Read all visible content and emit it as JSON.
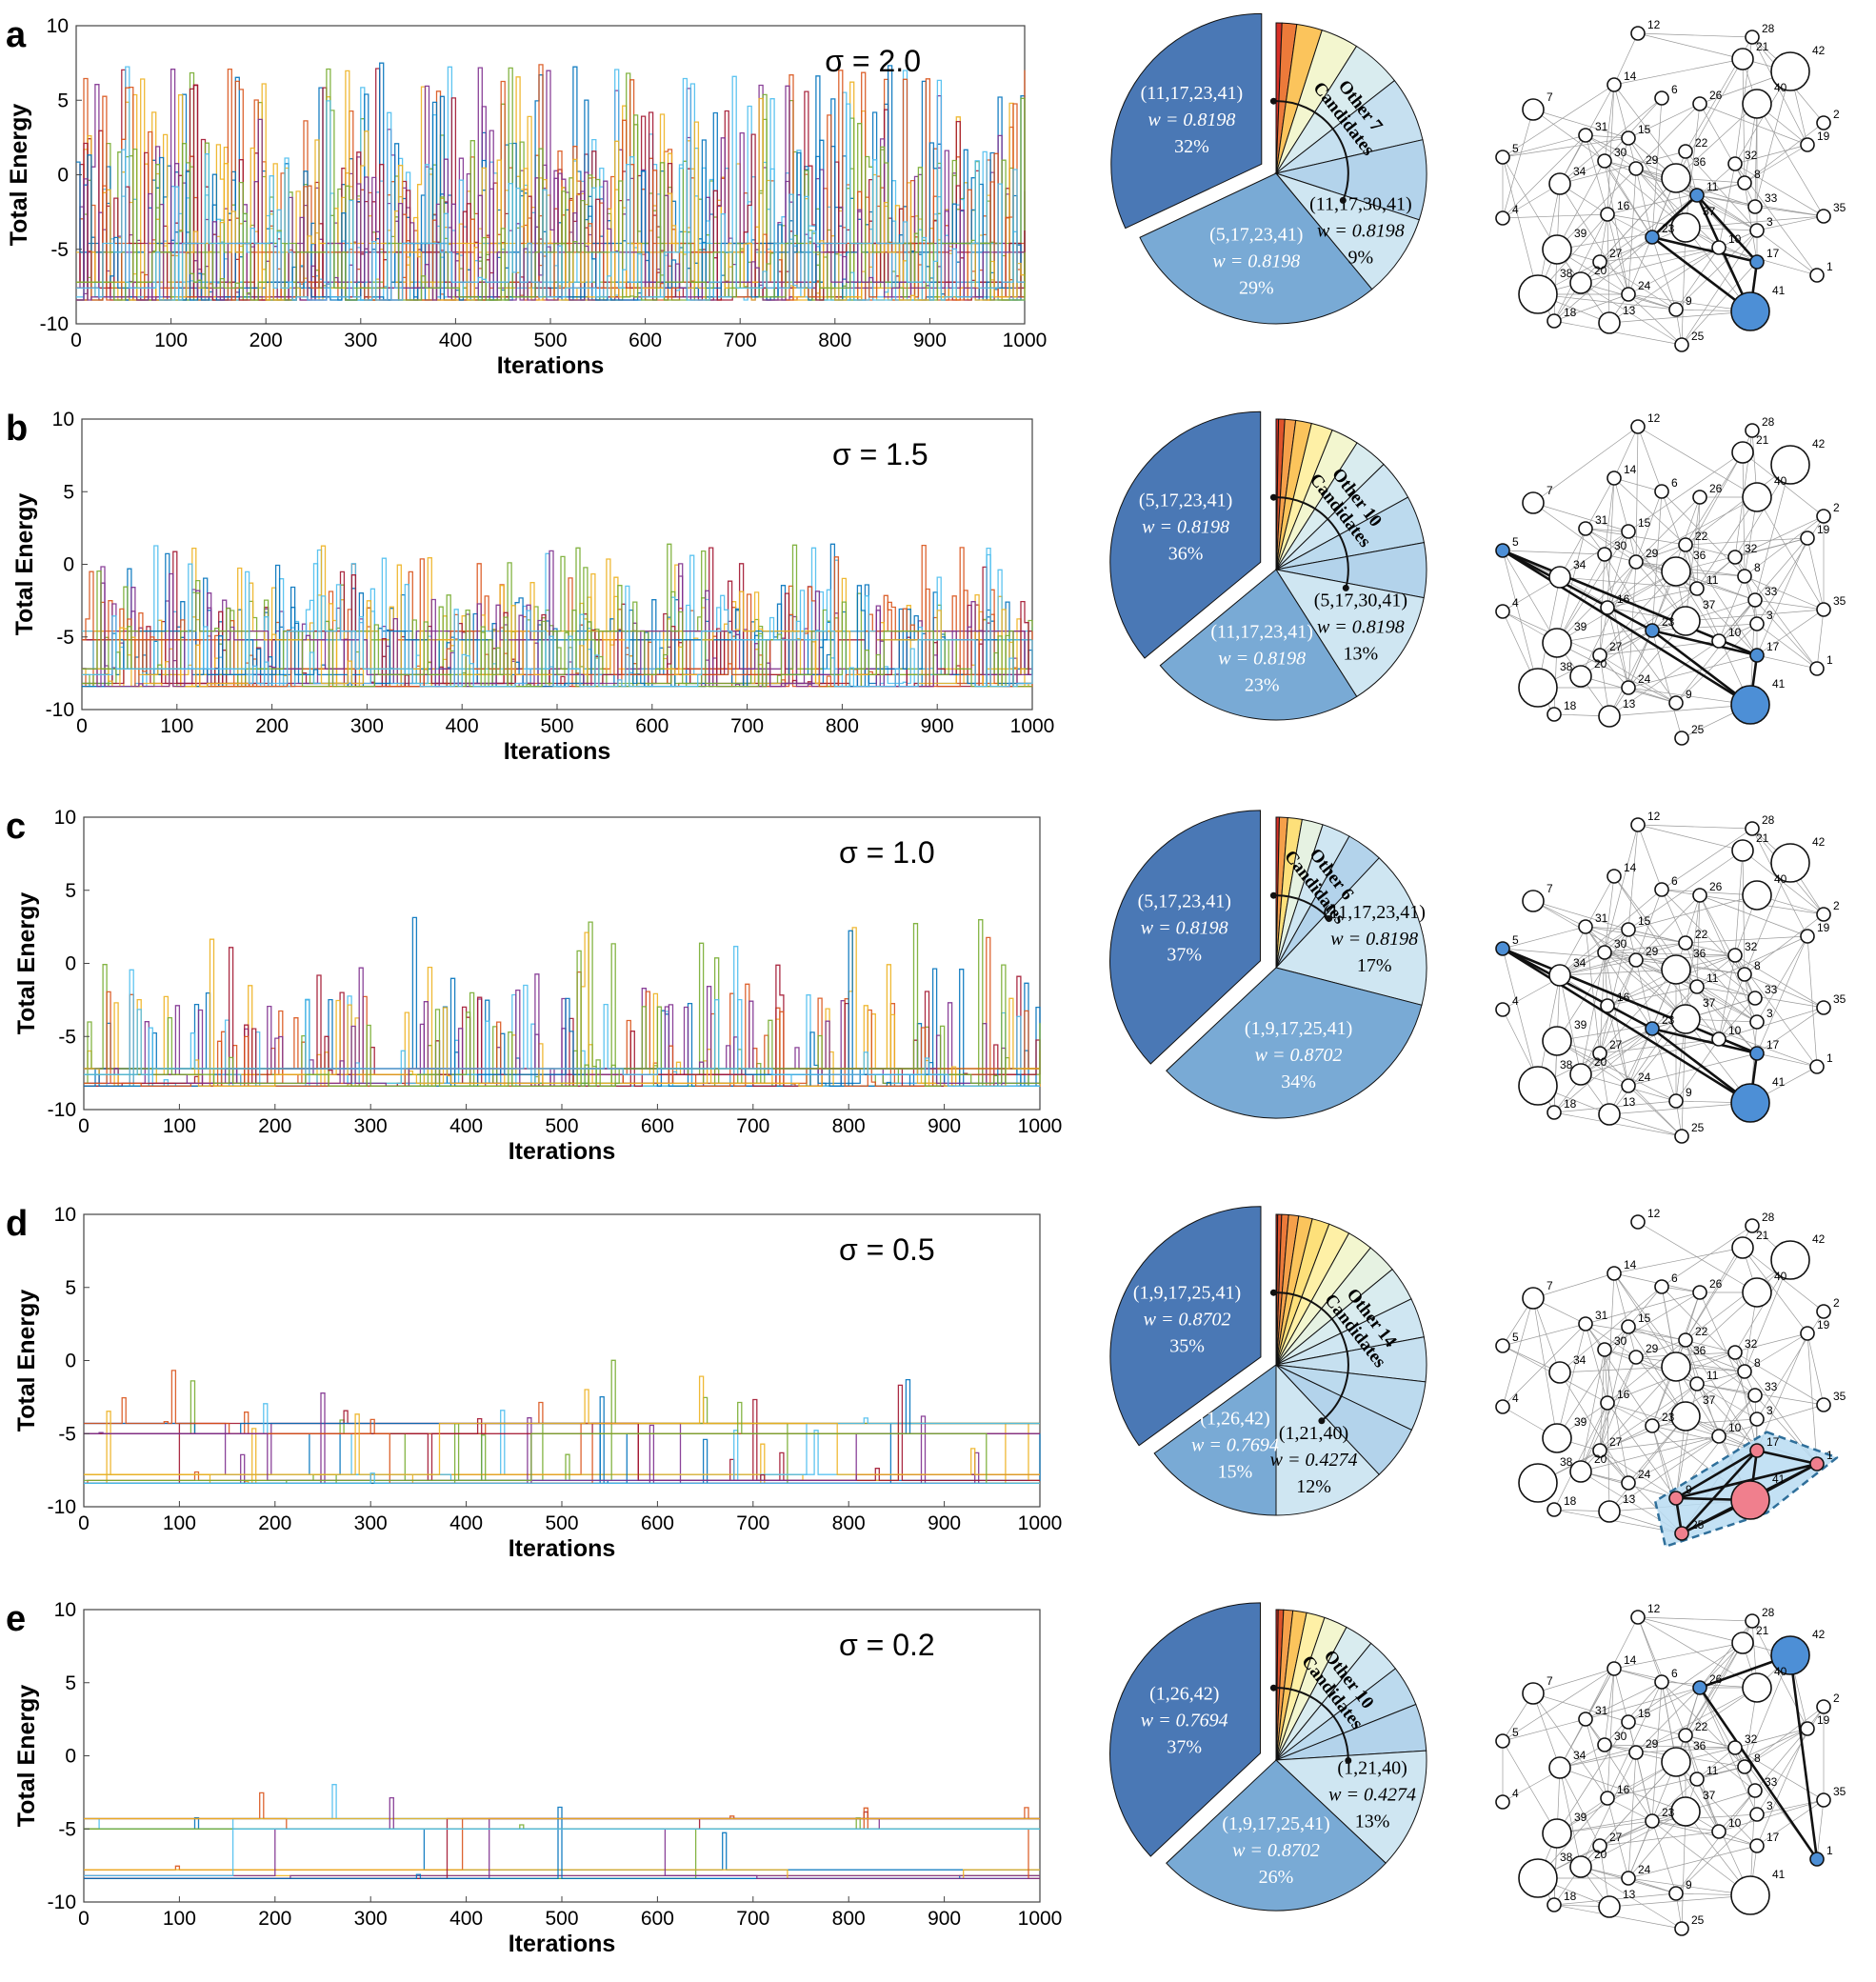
{
  "figure": {
    "description_colors": {
      "pie_dark": "#4a78b5",
      "pie_mid": "#79aad5",
      "pie_light": "#cfe6f2",
      "node_highlight_blue": "#4d8fd6",
      "node_highlight_red": "#f07f8d",
      "cluster_fill": "#b9dcf2",
      "cluster_stroke": "#2f6f9a"
    }
  },
  "chart_data": [
    {
      "type": "line",
      "panel": "a",
      "title": "σ = 2.0",
      "xlabel": "Iterations",
      "ylabel": "Total Energy",
      "xlim": [
        0,
        1000
      ],
      "ylim": [
        -10,
        10
      ],
      "xticks": [
        0,
        100,
        200,
        300,
        400,
        500,
        600,
        700,
        800,
        900,
        1000
      ],
      "yticks": [
        -10,
        -5,
        0,
        5,
        10
      ],
      "series_count": 20,
      "baseline_levels": [
        -8.4,
        -8.2,
        -7.6,
        -7.2,
        -5.2,
        -4.6
      ],
      "spike_rate": 0.2,
      "spike_max": 7.5,
      "pie": {
        "slices": [
          {
            "label": "(11,17,23,41)",
            "w": "w = 0.8198",
            "pct": "32%",
            "value": 32
          },
          {
            "label": "(5,17,23,41)",
            "w": "w = 0.8198",
            "pct": "29%",
            "value": 29
          },
          {
            "label": "(11,17,30,41)",
            "w": "w = 0.8198",
            "pct": "9%",
            "value": 9
          }
        ],
        "other_label": "Other 7",
        "other_label2": "Candidates",
        "other_count": 7
      },
      "graph_highlight": {
        "nodes": [
          11,
          17,
          23,
          41
        ],
        "style": "blue"
      }
    },
    {
      "type": "line",
      "panel": "b",
      "title": "σ = 1.5",
      "xlabel": "Iterations",
      "ylabel": "Total Energy",
      "xlim": [
        0,
        1000
      ],
      "ylim": [
        -10,
        10
      ],
      "xticks": [
        0,
        100,
        200,
        300,
        400,
        500,
        600,
        700,
        800,
        900,
        1000
      ],
      "yticks": [
        -10,
        -5,
        0,
        5,
        10
      ],
      "series_count": 20,
      "baseline_levels": [
        -8.4,
        -8.2,
        -7.6,
        -7.2,
        -5.2,
        -4.6
      ],
      "spike_rate": 0.1,
      "spike_max": 1.4,
      "pie": {
        "slices": [
          {
            "label": "(5,17,23,41)",
            "w": "w = 0.8198",
            "pct": "36%",
            "value": 36
          },
          {
            "label": "(11,17,23,41)",
            "w": "w = 0.8198",
            "pct": "23%",
            "value": 23
          },
          {
            "label": "(5,17,30,41)",
            "w": "w = 0.8198",
            "pct": "13%",
            "value": 13
          }
        ],
        "other_label": "Other 10",
        "other_label2": "Candidates",
        "other_count": 10
      },
      "graph_highlight": {
        "nodes": [
          5,
          17,
          23,
          41
        ],
        "style": "blue"
      }
    },
    {
      "type": "line",
      "panel": "c",
      "title": "σ = 1.0",
      "xlabel": "Iterations",
      "ylabel": "Total Energy",
      "xlim": [
        0,
        1000
      ],
      "ylim": [
        -10,
        10
      ],
      "xticks": [
        0,
        100,
        200,
        300,
        400,
        500,
        600,
        700,
        800,
        900,
        1000
      ],
      "yticks": [
        -10,
        -5,
        0,
        5,
        10
      ],
      "series_count": 20,
      "baseline_levels": [
        -8.4,
        -8.2,
        -7.6,
        -7.2
      ],
      "spike_rate": 0.04,
      "spike_max": 3.3,
      "pie": {
        "slices": [
          {
            "label": "(5,17,23,41)",
            "w": "w = 0.8198",
            "pct": "37%",
            "value": 37
          },
          {
            "label": "(1,9,17,25,41)",
            "w": "w = 0.8702",
            "pct": "34%",
            "value": 34
          },
          {
            "label": "(11,17,23,41)",
            "w": "w = 0.8198",
            "pct": "17%",
            "value": 17
          }
        ],
        "other_label": "Other 6",
        "other_label2": "Candidates",
        "other_count": 6
      },
      "graph_highlight": {
        "nodes": [
          5,
          17,
          23,
          41
        ],
        "style": "blue"
      }
    },
    {
      "type": "line",
      "panel": "d",
      "title": "σ = 0.5",
      "xlabel": "Iterations",
      "ylabel": "Total Energy",
      "xlim": [
        0,
        1000
      ],
      "ylim": [
        -10,
        10
      ],
      "xticks": [
        0,
        100,
        200,
        300,
        400,
        500,
        600,
        700,
        800,
        900,
        1000
      ],
      "yticks": [
        -10,
        -5,
        0,
        5,
        10
      ],
      "series_count": 20,
      "baseline_levels": [
        -8.4,
        -8.2,
        -7.8,
        -5.0,
        -4.3
      ],
      "spike_rate": 0.01,
      "spike_max": 1.0,
      "pie": {
        "slices": [
          {
            "label": "(1,9,17,25,41)",
            "w": "w = 0.8702",
            "pct": "35%",
            "value": 35
          },
          {
            "label": "(1,26,42)",
            "w": "w = 0.7694",
            "pct": "15%",
            "value": 15
          },
          {
            "label": "(1,21,40)",
            "w": "w = 0.4274",
            "pct": "12%",
            "value": 12
          }
        ],
        "other_label": "Other 14",
        "other_label2": "Candidates",
        "other_count": 14
      },
      "graph_highlight": {
        "nodes": [
          1,
          9,
          17,
          25,
          41
        ],
        "style": "red"
      }
    },
    {
      "type": "line",
      "panel": "e",
      "title": "σ = 0.2",
      "xlabel": "Iterations",
      "ylabel": "Total Energy",
      "xlim": [
        0,
        1000
      ],
      "ylim": [
        -10,
        10
      ],
      "xticks": [
        0,
        100,
        200,
        300,
        400,
        500,
        600,
        700,
        800,
        900,
        1000
      ],
      "yticks": [
        -10,
        -5,
        0,
        5,
        10
      ],
      "series_count": 20,
      "baseline_levels": [
        -8.4,
        -8.2,
        -7.8,
        -5.0,
        -4.3
      ],
      "spike_rate": 0.003,
      "spike_max": -1.5,
      "pie": {
        "slices": [
          {
            "label": "(1,26,42)",
            "w": "w = 0.7694",
            "pct": "37%",
            "value": 37
          },
          {
            "label": "(1,9,17,25,41)",
            "w": "w = 0.8702",
            "pct": "26%",
            "value": 26
          },
          {
            "label": "(1,21,40)",
            "w": "w = 0.4274",
            "pct": "13%",
            "value": 13
          }
        ],
        "other_label": "Other 10",
        "other_label2": "Candidates",
        "other_count": 10
      },
      "graph_highlight": {
        "nodes": [
          1,
          26,
          42
        ],
        "style": "blue"
      }
    }
  ],
  "network": {
    "nodes": [
      {
        "id": "12",
        "label": "12",
        "size": "s"
      },
      {
        "id": "28",
        "label": "28",
        "size": "s"
      },
      {
        "id": "21",
        "label": "21",
        "size": "m"
      },
      {
        "id": "42",
        "label": "42",
        "size": "xl"
      },
      {
        "id": "14",
        "label": "14",
        "size": "s"
      },
      {
        "id": "6",
        "label": "6",
        "size": "s"
      },
      {
        "id": "26",
        "label": "26",
        "size": "s"
      },
      {
        "id": "40",
        "label": "40",
        "size": "l"
      },
      {
        "id": "7",
        "label": "7",
        "size": "m"
      },
      {
        "id": "2",
        "label": "2",
        "size": "s"
      },
      {
        "id": "31",
        "label": "31",
        "size": "s"
      },
      {
        "id": "15",
        "label": "15",
        "size": "s"
      },
      {
        "id": "19",
        "label": "19",
        "size": "s"
      },
      {
        "id": "22",
        "label": "22",
        "size": "s"
      },
      {
        "id": "5",
        "label": "5",
        "size": "s"
      },
      {
        "id": "30",
        "label": "30",
        "size": "s"
      },
      {
        "id": "29",
        "label": "29",
        "size": "s"
      },
      {
        "id": "32",
        "label": "32",
        "size": "s"
      },
      {
        "id": "36",
        "label": "36",
        "size": "l"
      },
      {
        "id": "8",
        "label": "8",
        "size": "s"
      },
      {
        "id": "34",
        "label": "34",
        "size": "m"
      },
      {
        "id": "11",
        "label": "11",
        "size": "s"
      },
      {
        "id": "33",
        "label": "33",
        "size": "s"
      },
      {
        "id": "16",
        "label": "16",
        "size": "s"
      },
      {
        "id": "35",
        "label": "35",
        "size": "s"
      },
      {
        "id": "4",
        "label": "4",
        "size": "s"
      },
      {
        "id": "37",
        "label": "37",
        "size": "l"
      },
      {
        "id": "3",
        "label": "3",
        "size": "s"
      },
      {
        "id": "23",
        "label": "23",
        "size": "s"
      },
      {
        "id": "10",
        "label": "10",
        "size": "s"
      },
      {
        "id": "39",
        "label": "39",
        "size": "l"
      },
      {
        "id": "27",
        "label": "27",
        "size": "s"
      },
      {
        "id": "17",
        "label": "17",
        "size": "s"
      },
      {
        "id": "20",
        "label": "20",
        "size": "m"
      },
      {
        "id": "1",
        "label": "1",
        "size": "s"
      },
      {
        "id": "24",
        "label": "24",
        "size": "s"
      },
      {
        "id": "38",
        "label": "38",
        "size": "xl"
      },
      {
        "id": "9",
        "label": "9",
        "size": "s"
      },
      {
        "id": "18",
        "label": "18",
        "size": "s"
      },
      {
        "id": "41",
        "label": "41",
        "size": "xl"
      },
      {
        "id": "13",
        "label": "13",
        "size": "m"
      },
      {
        "id": "25",
        "label": "25",
        "size": "s"
      }
    ]
  }
}
